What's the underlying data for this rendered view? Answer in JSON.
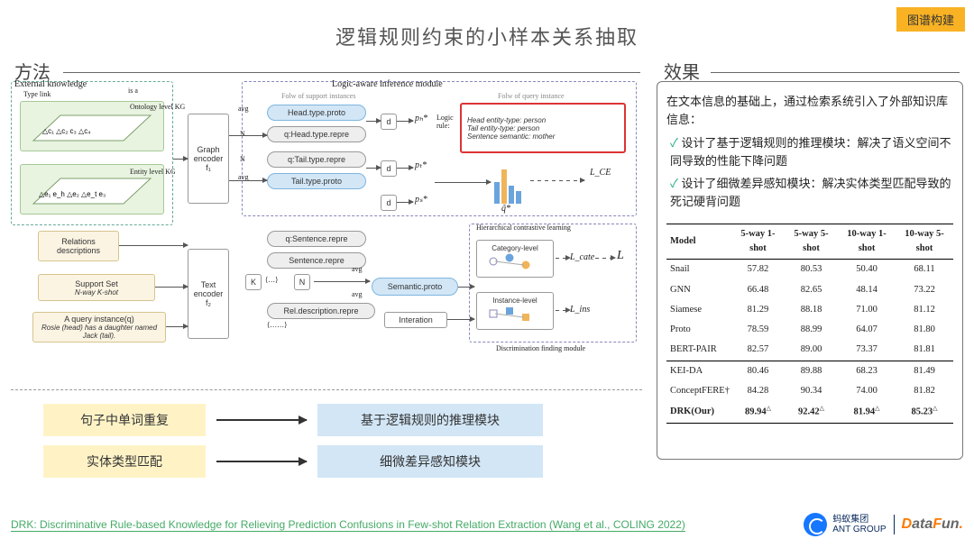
{
  "tag": "图谱构建",
  "title": "逻辑规则约束的小样本关系抽取",
  "labels": {
    "method": "方法",
    "effect": "效果"
  },
  "diagram": {
    "ext_knowledge": "External knowledge",
    "type_link": "Type link",
    "is_a": "is a",
    "ontology_kg": "Ontology\nlevel KG",
    "entity_kg": "Entity\nlevel KG",
    "graph_encoder": "Graph\nencoder\nf₁",
    "text_encoder": "Text\nencoder\nf₂",
    "relations_desc": "Relations\ndescriptions",
    "support_set": "Support Set",
    "support_sub": "N-way K-shot",
    "query_inst": "A query instance(q)",
    "query_sub": "Rosie (head) has a daughter\nnamed Jack (tail).",
    "logic_module": "Logic-aware inference module",
    "folw_support": "Folw of support instances",
    "folw_query": "Folw of query instance",
    "head_proto": "Head.type.proto",
    "q_head_repre": "q:Head.type.repre",
    "q_tail_repre": "q:Tail.type.repre",
    "tail_proto": "Tail.type.proto",
    "logic_rule_title": "Logic\nrule:",
    "rule_head": "Head entity-type: person",
    "rule_tail": "Tail entity-type: person",
    "rule_sent": "Sentence semantic: mother",
    "q_sentence": "q:Sentence.repre",
    "sentence_repre": "Sentence.repre",
    "rel_desc_repre": "Rel.description.repre",
    "semantic_proto": "Semantic.proto",
    "interation": "Interation",
    "hier_contrast": "Hierarchical contrastive learning",
    "cat_level": "Category-level",
    "inst_level": "Instance-level",
    "disc_module": "Discrimination finding module",
    "d": "d",
    "avg": "avg",
    "N": "N",
    "K": "K",
    "ph": "pₕ*",
    "pt": "pₜ*",
    "ps": "pₛ*",
    "q_tilde": "q̃*",
    "Lce": "L_CE",
    "Lcate": "L_cate",
    "Lins": "L_ins",
    "L": "L"
  },
  "mappings": [
    {
      "left": "句子中单词重复",
      "right": "基于逻辑规则的推理模块"
    },
    {
      "left": "实体类型匹配",
      "right": "细微差异感知模块"
    }
  ],
  "effect": {
    "intro": "在文本信息的基础上，通过检索系统引入了外部知识库信息：",
    "points": [
      "设计了基于逻辑规则的推理模块：解决了语义空间不同导致的性能下降问题",
      "设计了细微差异感知模块：解决实体类型匹配导致的死记硬背问题"
    ],
    "table": {
      "columns": [
        "Model",
        "5-way 1-shot",
        "5-way 5-shot",
        "10-way 1-shot",
        "10-way 5-shot"
      ],
      "groups": [
        [
          {
            "m": "Snail",
            "v": [
              "57.82",
              "80.53",
              "50.40",
              "68.11"
            ]
          },
          {
            "m": "GNN",
            "v": [
              "66.48",
              "82.65",
              "48.14",
              "73.22"
            ]
          },
          {
            "m": "Siamese",
            "v": [
              "81.29",
              "88.18",
              "71.00",
              "81.12"
            ]
          },
          {
            "m": "Proto",
            "v": [
              "78.59",
              "88.99",
              "64.07",
              "81.80"
            ]
          },
          {
            "m": "BERT-PAIR",
            "v": [
              "82.57",
              "89.00",
              "73.37",
              "81.81"
            ]
          }
        ],
        [
          {
            "m": "KEI-DA",
            "v": [
              "80.46",
              "89.88",
              "68.23",
              "81.49"
            ]
          },
          {
            "m": "ConceptFERE†",
            "v": [
              "84.28",
              "90.34",
              "74.00",
              "81.82"
            ]
          },
          {
            "m": "DRK(Our)",
            "v": [
              "89.94",
              "92.42",
              "81.94",
              "85.23"
            ],
            "sup": true
          }
        ]
      ]
    }
  },
  "footer": {
    "citation": "DRK: Discriminative Rule-based Knowledge for Relieving Prediction Confusions in Few-shot Relation Extraction (Wang et al., COLING 2022)",
    "ant1": "蚂蚁集团",
    "ant2": "ANT GROUP",
    "datafun": "DataFun."
  },
  "colors": {
    "tag_bg": "#f9b223",
    "yellow_box": "#fff3c6",
    "blue_box": "#d2e6f6",
    "accent_blue": "#6aa4dd",
    "green_box": "#e8f3e0",
    "tan_box": "#fbf4e3",
    "red_border": "#d33",
    "ant_blue": "#1677ff",
    "datafun_orange": "#ff7a00",
    "citation": "#4a6"
  }
}
